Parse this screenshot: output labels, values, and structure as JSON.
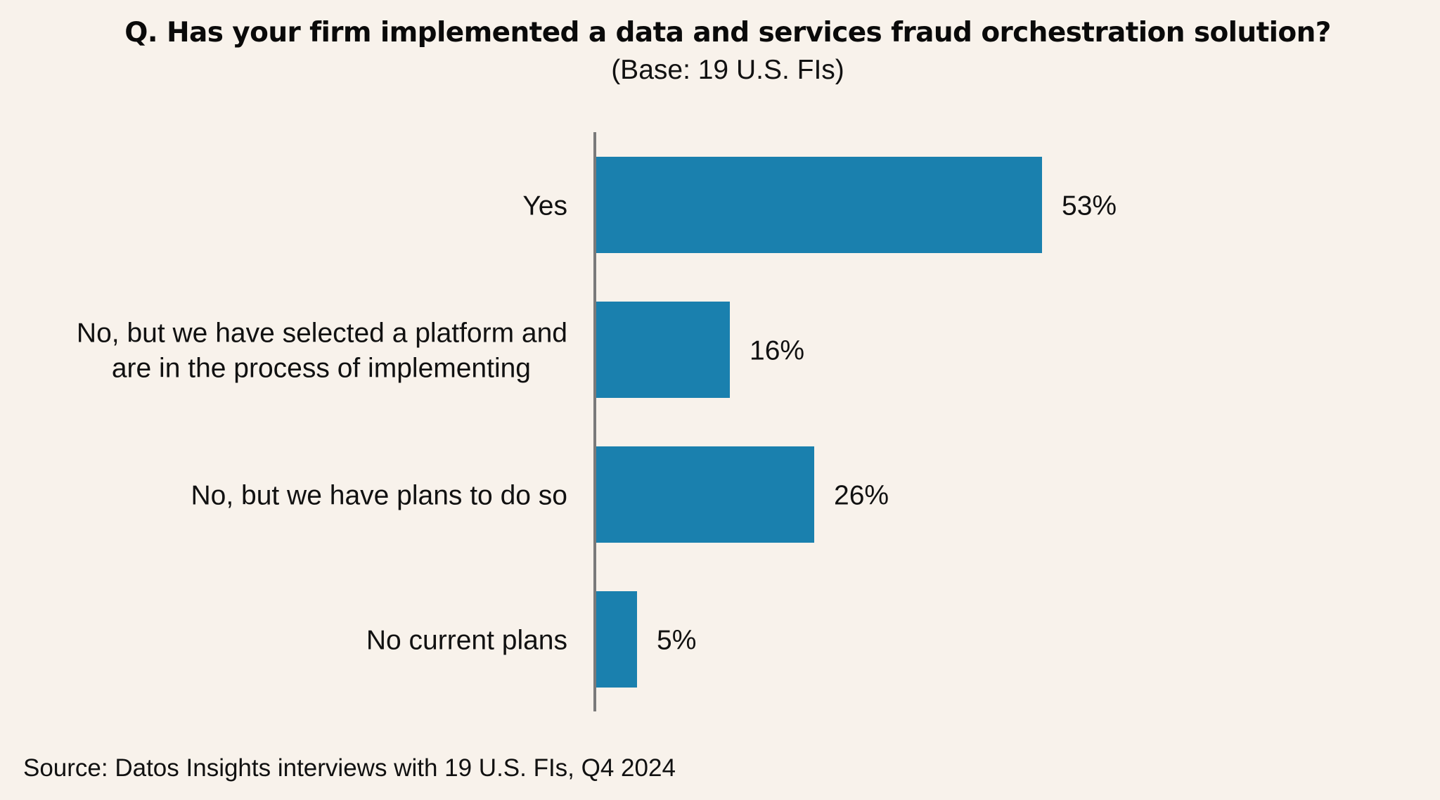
{
  "chart_data": {
    "type": "bar",
    "orientation": "horizontal",
    "title": "Q. Has your firm implemented a data and services fraud orchestration solution?",
    "subtitle": "(Base: 19 U.S. FIs)",
    "categories": [
      [
        "Yes"
      ],
      [
        "No, but we have selected a platform and",
        "are in the process of implementing"
      ],
      [
        "No, but we have plans to do so"
      ],
      [
        "No current plans"
      ]
    ],
    "values": [
      53,
      16,
      26,
      5
    ],
    "value_labels": [
      "53%",
      "16%",
      "26%",
      "5%"
    ],
    "unit": "%",
    "xlim": [
      0,
      100
    ],
    "grid": false,
    "legend": "none",
    "bar_color": "#1a80ae",
    "axis_color": "#7a7a7a",
    "background": "#f8f2eb",
    "source": "Source: Datos Insights interviews with 19 U.S. FIs, Q4 2024"
  }
}
